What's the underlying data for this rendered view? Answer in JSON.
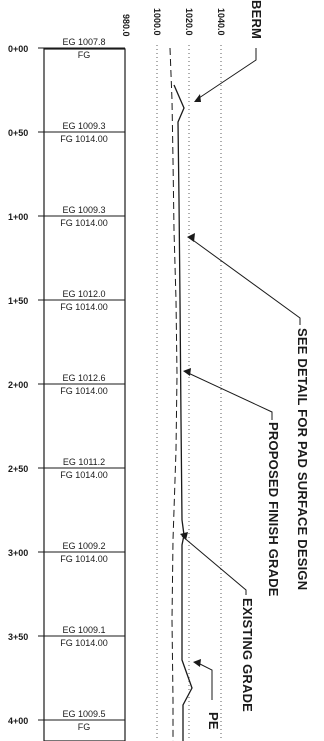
{
  "elevation_axis": [
    "980.0",
    "1000.0",
    "1020.0",
    "1040.0"
  ],
  "stations": [
    {
      "station": "0+00",
      "eg": "EG 1007.8",
      "fg": "FG"
    },
    {
      "station": "0+50",
      "eg": "EG 1009.3",
      "fg": "FG 1014.00"
    },
    {
      "station": "1+00",
      "eg": "EG 1009.3",
      "fg": "FG 1014.00"
    },
    {
      "station": "1+50",
      "eg": "EG 1012.0",
      "fg": "FG 1014.00"
    },
    {
      "station": "2+00",
      "eg": "EG 1012.6",
      "fg": "FG 1014.00"
    },
    {
      "station": "2+50",
      "eg": "EG 1011.2",
      "fg": "FG 1014.00"
    },
    {
      "station": "3+00",
      "eg": "EG 1009.2",
      "fg": "FG 1014.00"
    },
    {
      "station": "3+50",
      "eg": "EG 1009.1",
      "fg": "FG 1014.00"
    },
    {
      "station": "4+00",
      "eg": "EG 1009.5",
      "fg": "FG"
    }
  ],
  "callouts": {
    "berm": "BERM",
    "pad_detail": "SEE DETAIL FOR PAD SURFACE DESIGN",
    "finish_grade": "PROPOSED FINISH GRADE",
    "existing_grade": "EXISTING GRADE",
    "partial_bottom": "PE"
  },
  "colors": {
    "ink": "#1a1a1a",
    "paper": "#ffffff"
  }
}
